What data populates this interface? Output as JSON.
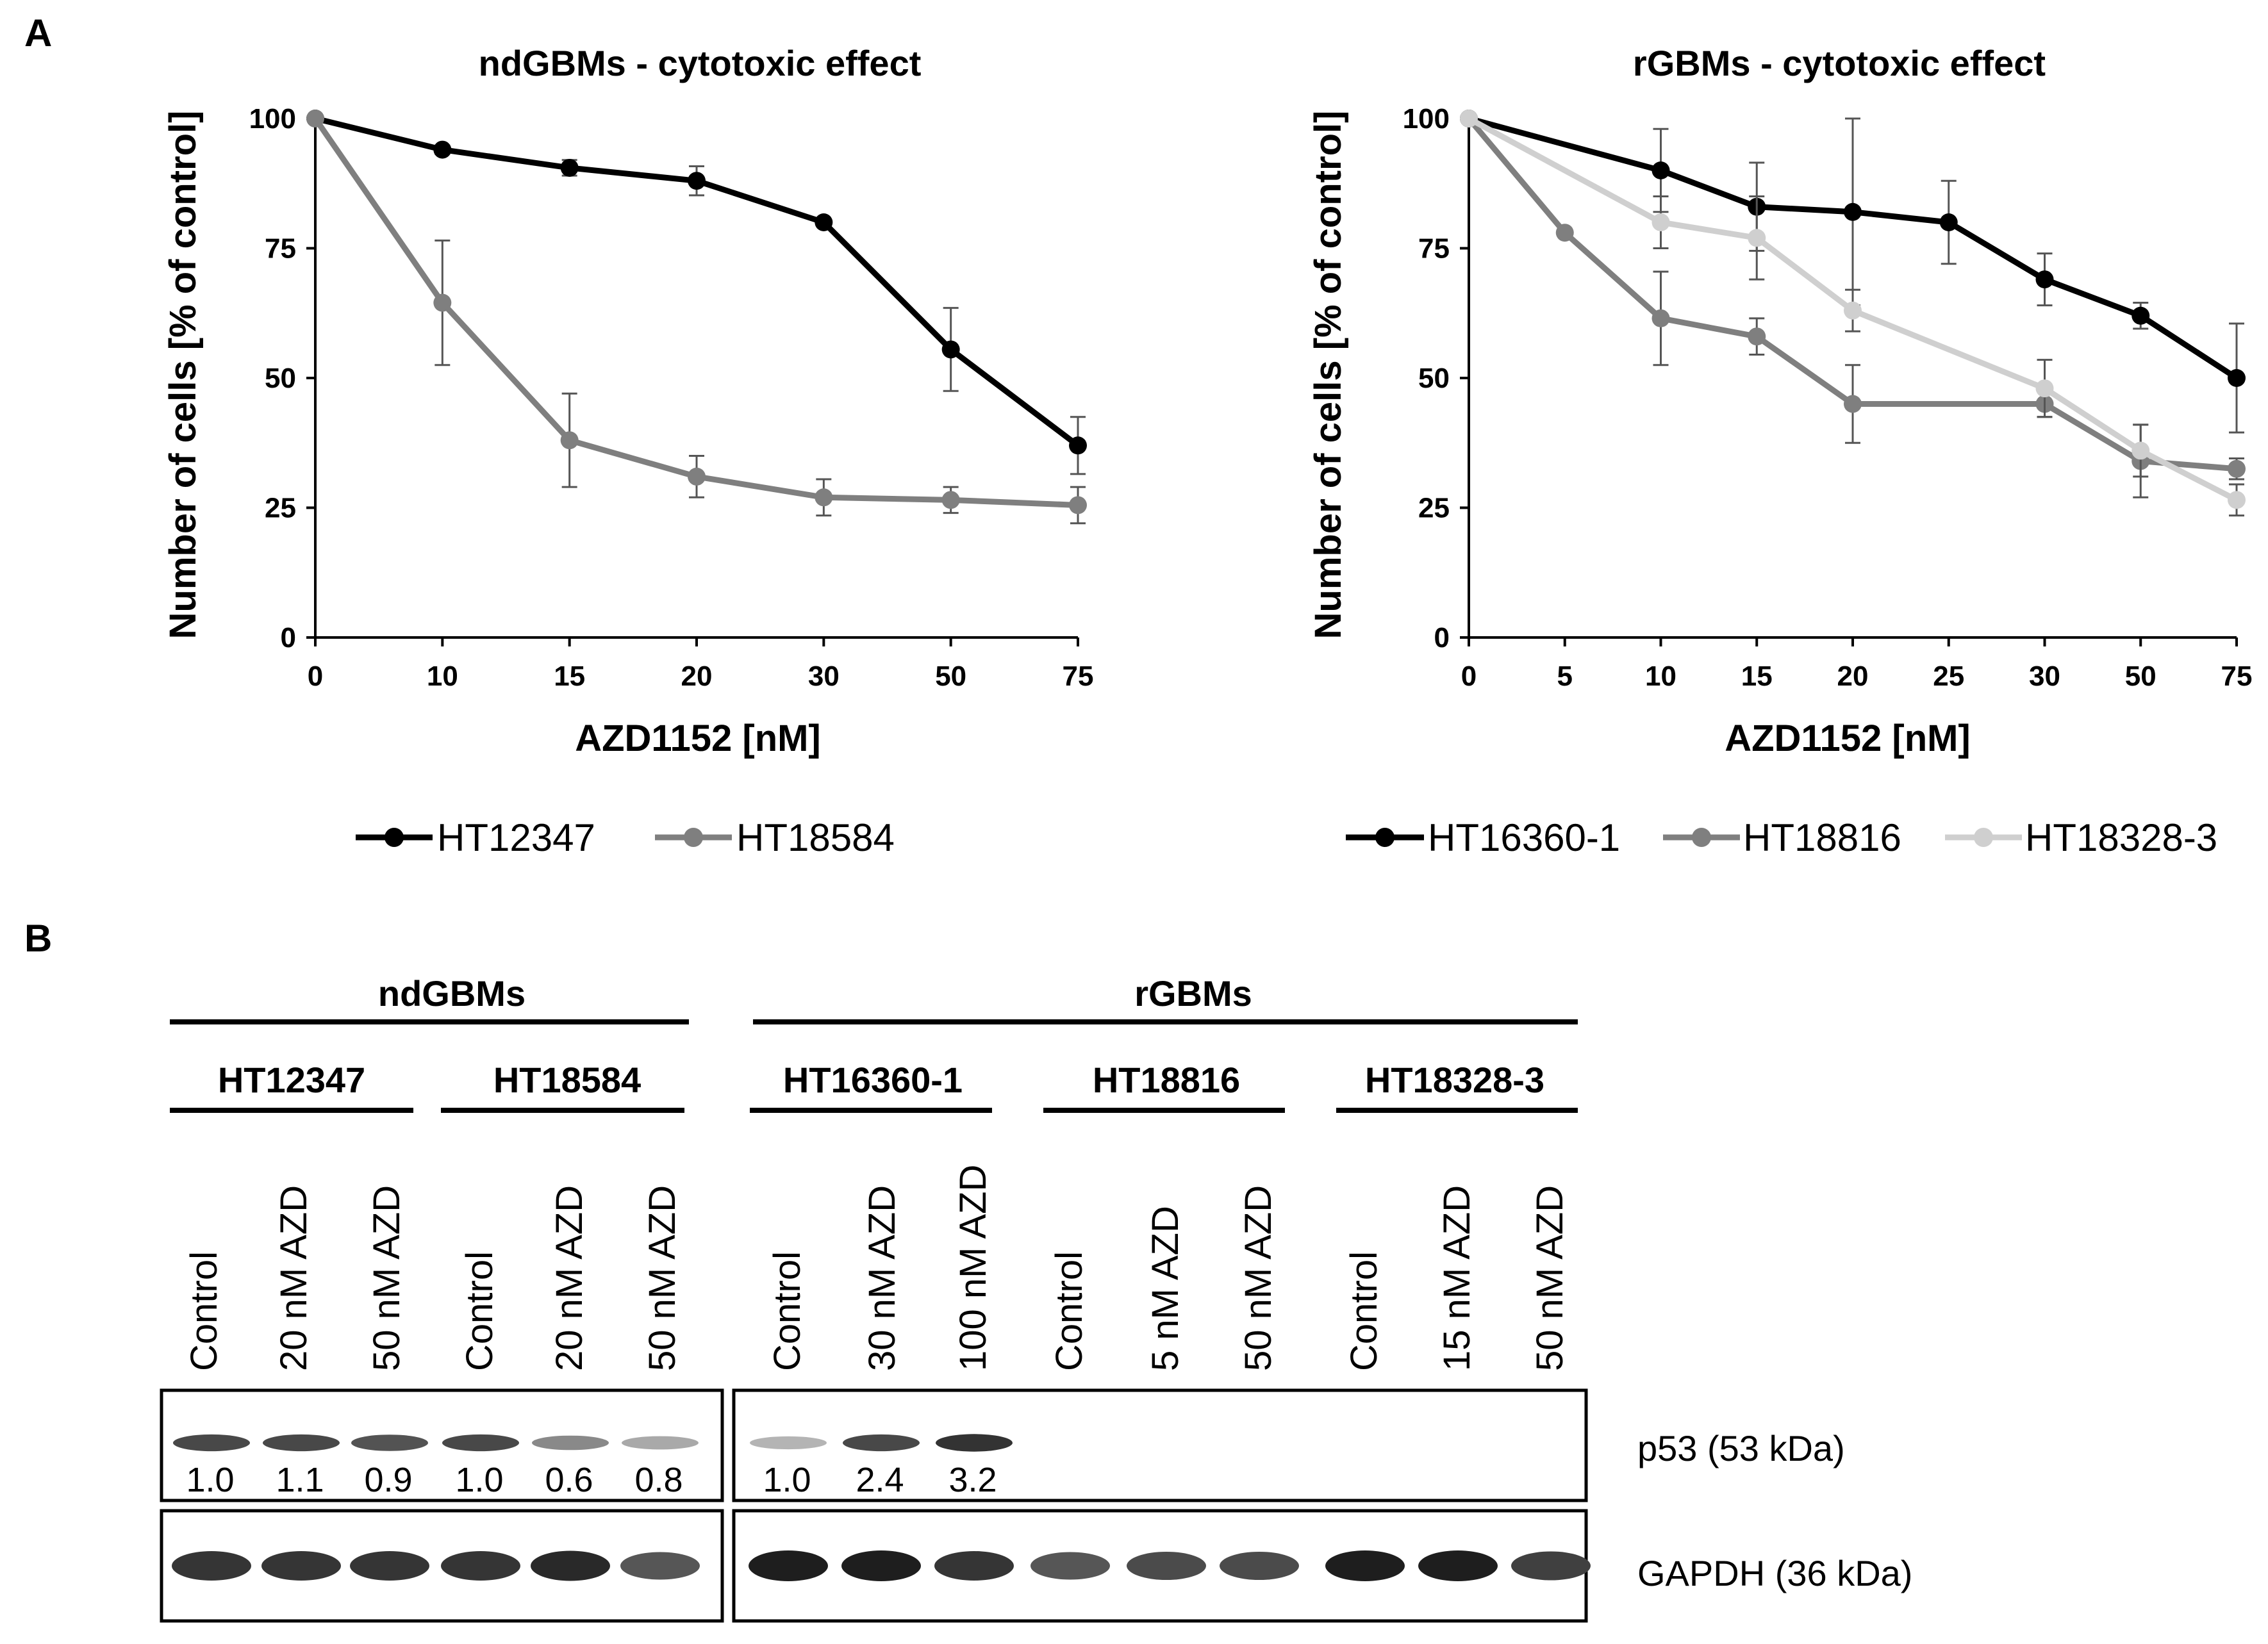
{
  "panel_labels": {
    "a": "A",
    "b": "B"
  },
  "colors": {
    "black": "#000000",
    "dark_gray": "#7f7f7f",
    "light_gray": "#cfcfcf",
    "err": "#555555"
  },
  "chart_data": [
    {
      "type": "line",
      "title": "ndGBMs  - cytotoxic effect",
      "xlabel": "AZD1152 [nM]",
      "ylabel": "Number of cells [% of control]",
      "categories": [
        "0",
        "10",
        "15",
        "20",
        "30",
        "50",
        "75"
      ],
      "yticks": [
        "0",
        "25",
        "50",
        "75",
        "100"
      ],
      "ylim": [
        0,
        100
      ],
      "series": [
        {
          "name": "HT12347",
          "color": "#000000",
          "values": [
            100,
            94,
            90.5,
            88,
            80,
            55.5,
            37
          ],
          "errors": [
            0,
            0.8,
            1.5,
            2.8,
            0.5,
            8,
            5.5
          ]
        },
        {
          "name": "HT18584",
          "color": "#7f7f7f",
          "values": [
            100,
            64.5,
            38,
            31,
            27,
            26.5,
            25.5
          ],
          "errors": [
            0,
            12,
            9,
            4,
            3.5,
            2.5,
            3.5
          ]
        }
      ]
    },
    {
      "type": "line",
      "title": "rGBMs  - cytotoxic effect",
      "xlabel": "AZD1152 [nM]",
      "ylabel": "Number of cells [% of control]",
      "categories": [
        "0",
        "5",
        "10",
        "15",
        "20",
        "25",
        "30",
        "50",
        "75"
      ],
      "yticks": [
        "0",
        "25",
        "50",
        "75",
        "100"
      ],
      "ylim": [
        0,
        100
      ],
      "series": [
        {
          "name": "HT16360-1",
          "color": "#000000",
          "values": [
            100,
            null,
            90,
            83,
            82,
            80,
            69,
            62,
            50
          ],
          "errors": [
            0,
            0,
            8,
            8.5,
            18,
            8,
            5,
            2.5,
            10.5
          ]
        },
        {
          "name": "HT18816",
          "color": "#7f7f7f",
          "values": [
            100,
            78,
            61.5,
            58,
            45,
            null,
            45,
            34,
            32.5
          ],
          "errors": [
            0,
            0,
            9,
            3.5,
            7.5,
            0,
            2.5,
            7,
            2
          ]
        },
        {
          "name": "HT18328-3",
          "color": "#cfcfcf",
          "values": [
            100,
            null,
            80,
            77,
            63,
            null,
            48,
            36,
            26.5
          ],
          "errors": [
            0,
            0,
            5,
            8,
            4,
            0,
            5.5,
            5,
            3
          ]
        }
      ]
    }
  ],
  "blot": {
    "group_nd": "ndGBMs",
    "group_r": "rGBMs",
    "cell_lines": [
      "HT12347",
      "HT18584",
      "HT16360-1",
      "HT18816",
      "HT18328-3"
    ],
    "lanes": [
      "Control",
      "20 nM AZD",
      "50 nM AZD",
      "Control",
      "20 nM AZD",
      "50 nM AZD",
      "Control",
      "30 nM AZD",
      "100 nM AZD",
      "Control",
      "5 nM AZD",
      "50 nM AZD",
      "Control",
      "15 nM AZD",
      "50 nM AZD"
    ],
    "p53_quant": [
      "1.0",
      "1.1",
      "0.9",
      "1.0",
      "0.6",
      "0.8",
      "1.0",
      "2.4",
      "3.2"
    ],
    "p53_intensity": [
      0.85,
      0.85,
      0.8,
      0.85,
      0.55,
      0.4,
      0.35,
      0.85,
      0.95
    ],
    "gapdh_intensity": [
      0.9,
      0.9,
      0.9,
      0.9,
      0.95,
      0.75,
      1.0,
      1.0,
      0.9,
      0.75,
      0.8,
      0.8,
      1.0,
      1.0,
      0.85
    ],
    "p53_label": "p53 (53 kDa)",
    "gapdh_label": "GAPDH (36 kDa)"
  }
}
